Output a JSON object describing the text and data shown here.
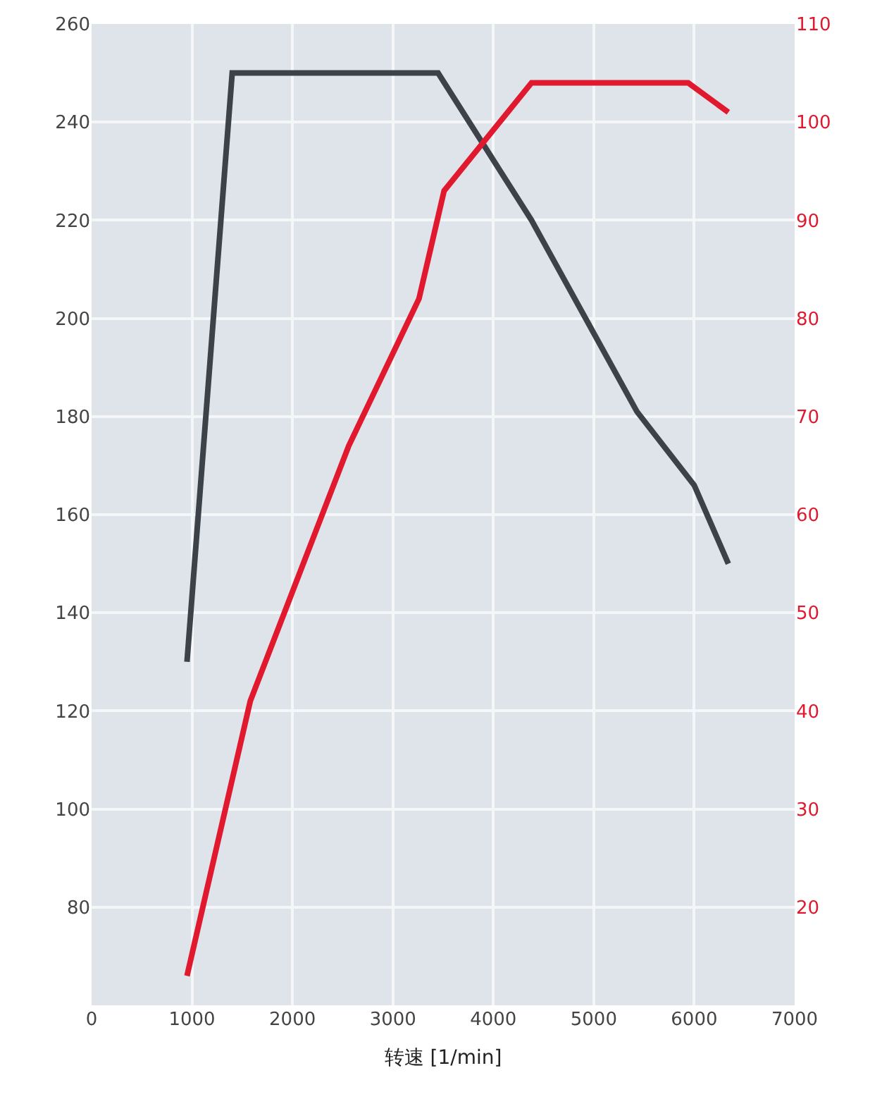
{
  "chart_data": {
    "type": "line",
    "xlabel": "转速 [1/min]",
    "xlim": [
      0,
      7000
    ],
    "xticks": [
      0,
      1000,
      2000,
      3000,
      4000,
      5000,
      6000,
      7000
    ],
    "ylim": [
      60,
      260
    ],
    "yticks": [
      80,
      100,
      120,
      140,
      160,
      180,
      200,
      220,
      240,
      260
    ],
    "y2lim": [
      10,
      110
    ],
    "y2ticks": [
      20,
      30,
      40,
      50,
      60,
      70,
      80,
      90,
      100,
      110
    ],
    "grid": true,
    "series": [
      {
        "color": "#3c4248",
        "x": [
          950,
          1400,
          3450,
          4380,
          5430,
          6000,
          6340
        ],
        "values": [
          130,
          250,
          250,
          220,
          181,
          166,
          150
        ]
      },
      {
        "color": "#e0192e",
        "axis": "y2",
        "x": [
          950,
          1580,
          2070,
          2560,
          3260,
          3510,
          4380,
          5940,
          6340
        ],
        "values": [
          13,
          41,
          54,
          67,
          82,
          93,
          104,
          104,
          101
        ]
      }
    ]
  }
}
